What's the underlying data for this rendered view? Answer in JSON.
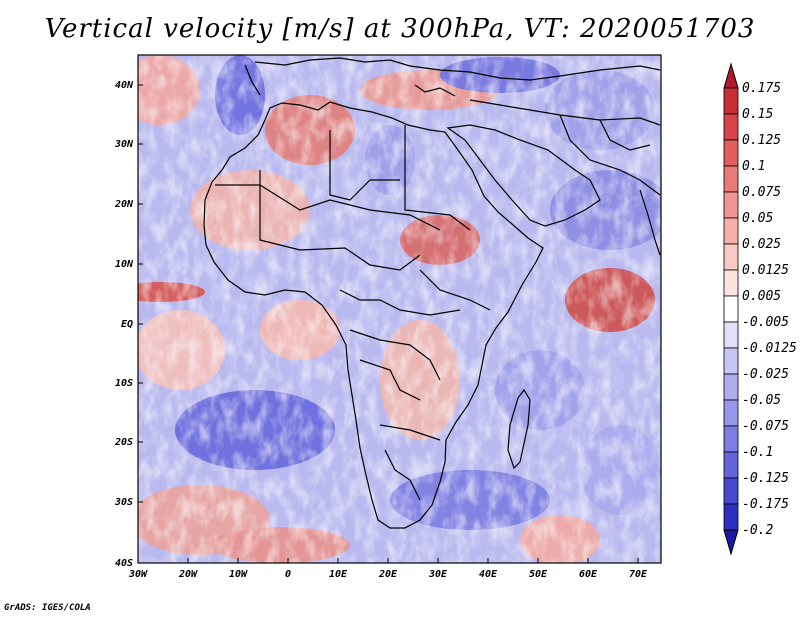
{
  "title": "Vertical velocity [m/s] at 300hPa, VT: 2020051703",
  "credit": "GrADS: IGES/COLA",
  "map": {
    "lat_labels": [
      "40N",
      "30N",
      "20N",
      "10N",
      "EQ",
      "10S",
      "20S",
      "30S",
      "40S"
    ],
    "lon_labels": [
      "30W",
      "20W",
      "10W",
      "0",
      "10E",
      "20E",
      "30E",
      "40E",
      "50E",
      "60E",
      "70E"
    ]
  },
  "colorbar": {
    "labels": [
      "0.175",
      "0.15",
      "0.125",
      "0.1",
      "0.075",
      "0.05",
      "0.025",
      "0.0125",
      "0.005",
      "-0.005",
      "-0.0125",
      "-0.025",
      "-0.05",
      "-0.075",
      "-0.1",
      "-0.125",
      "-0.175",
      "-0.2"
    ],
    "colors": [
      "#b2182b",
      "#c92e34",
      "#d9444a",
      "#e35f5f",
      "#ea7a78",
      "#f09590",
      "#f5b0aa",
      "#f9cac5",
      "#fce3e0",
      "#ffffff",
      "#e0e0fa",
      "#c6c6f4",
      "#aeaeef",
      "#9797ea",
      "#7f7fe3",
      "#6464dc",
      "#4848d1",
      "#2f2fbf",
      "#1a1aa6"
    ]
  },
  "colors": {
    "positive": "#d9444a",
    "negative": "#5a5adc",
    "land_line": "#000000"
  }
}
